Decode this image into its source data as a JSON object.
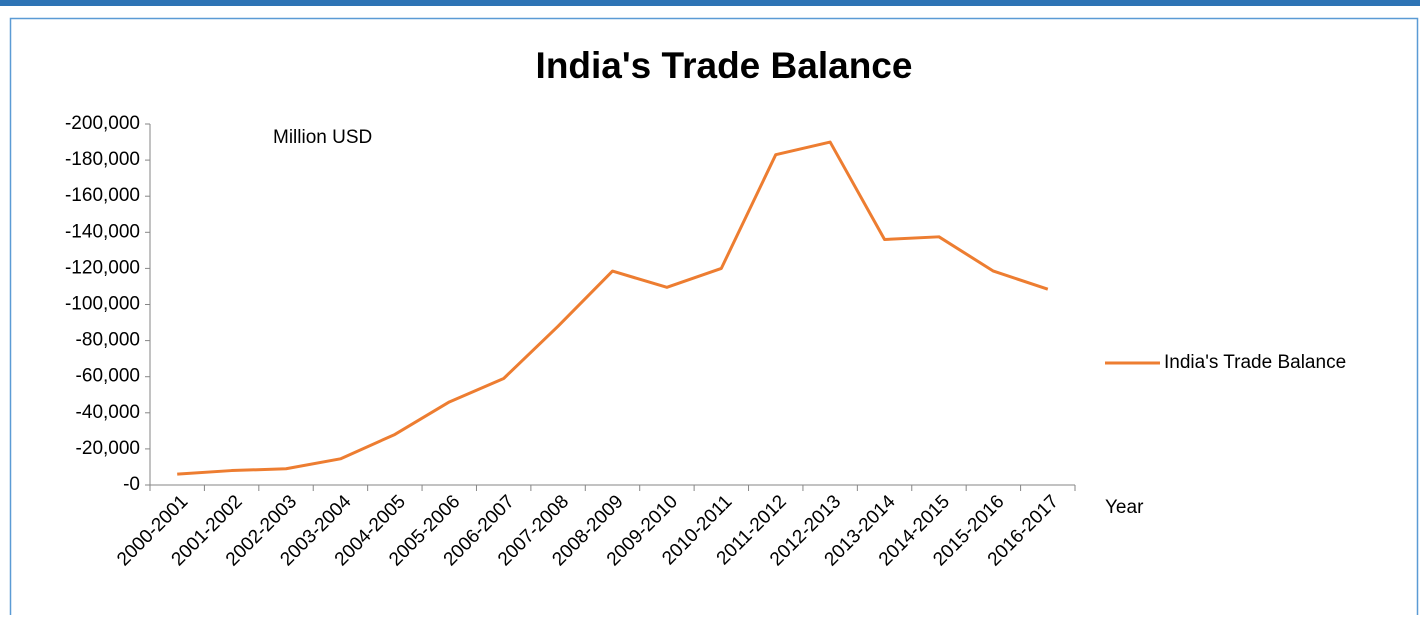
{
  "chart_data": {
    "type": "line",
    "title": "India's Trade Balance",
    "annotation": "Million USD",
    "x_label": "Year",
    "categories": [
      "2000-2001",
      "2001-2002",
      "2002-2003",
      "2003-2004",
      "2004-2005",
      "2005-2006",
      "2006-2007",
      "2007-2008",
      "2008-2009",
      "2009-2010",
      "2010-2011",
      "2011-2012",
      "2012-2013",
      "2013-2014",
      "2014-2015",
      "2015-2016",
      "2016-2017"
    ],
    "series": [
      {
        "name": "India's Trade Balance",
        "color": "#ed7d31",
        "values": [
          -6000,
          -8000,
          -9000,
          -14500,
          -28000,
          -46000,
          -59000,
          -88000,
          -118500,
          -109500,
          -120000,
          -183000,
          -190000,
          -136000,
          -137500,
          -118500,
          -108500
        ]
      }
    ],
    "ylim": [
      0,
      -200000
    ],
    "yticks": [
      {
        "value": 0,
        "label": "-0"
      },
      {
        "value": -20000,
        "label": "-20,000"
      },
      {
        "value": -40000,
        "label": "-40,000"
      },
      {
        "value": -60000,
        "label": "-60,000"
      },
      {
        "value": -80000,
        "label": "-80,000"
      },
      {
        "value": -100000,
        "label": "-100,000"
      },
      {
        "value": -120000,
        "label": "-120,000"
      },
      {
        "value": -140000,
        "label": "-140,000"
      },
      {
        "value": -160000,
        "label": "-160,000"
      },
      {
        "value": -180000,
        "label": "-180,000"
      },
      {
        "value": -200000,
        "label": "-200,000"
      }
    ],
    "legend": "right"
  }
}
